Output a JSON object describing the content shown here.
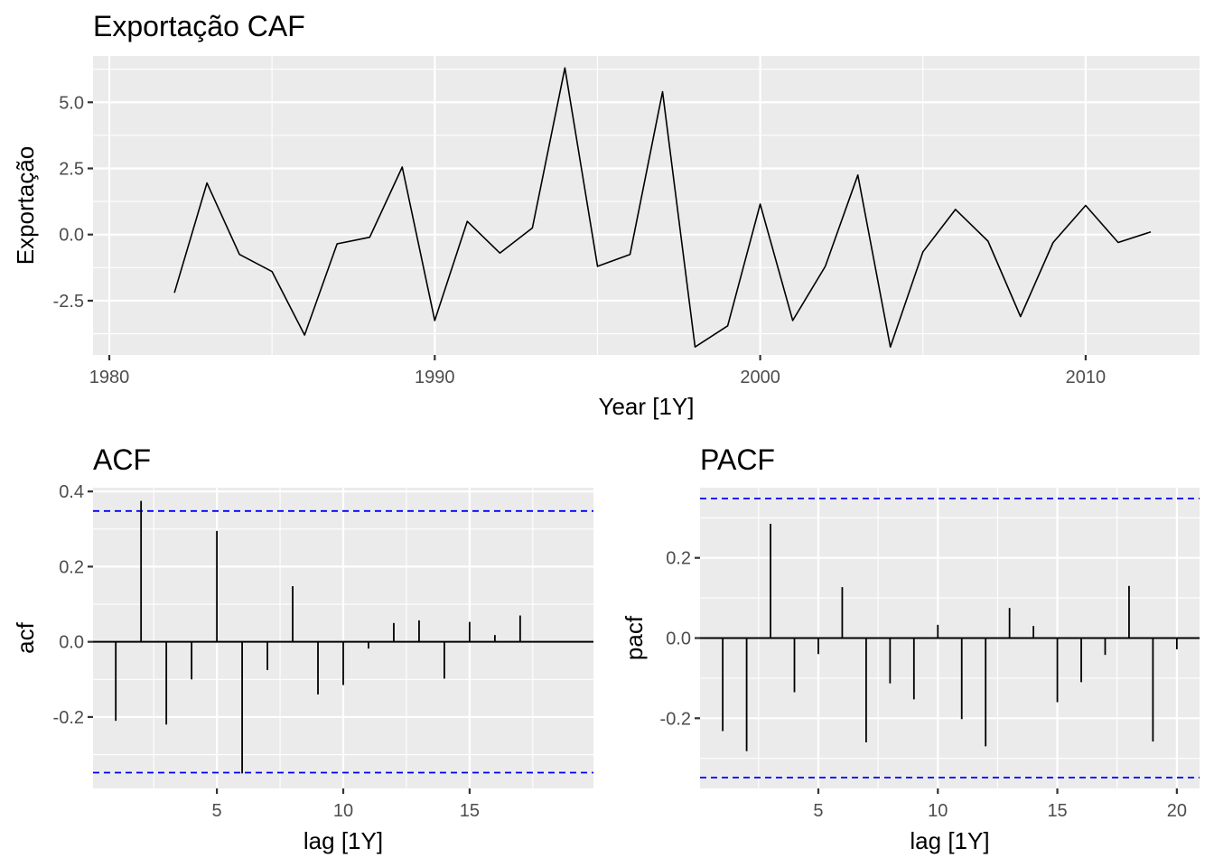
{
  "chart_data": [
    {
      "id": "ts",
      "type": "line",
      "title": "Exportação CAF",
      "xlabel": "Year [1Y]",
      "ylabel": "Exportação",
      "xlim": [
        1979.5,
        2013.5
      ],
      "ylim": [
        -4.55,
        6.75
      ],
      "xticks": [
        1980,
        1990,
        2000,
        2010
      ],
      "xtick_labels": [
        "1980",
        "1990",
        "2000",
        "2010"
      ],
      "yticks": [
        -2.5,
        0.0,
        2.5,
        5.0
      ],
      "ytick_labels": [
        "-2.5",
        "0.0",
        "2.5",
        "5.0"
      ],
      "grid": true,
      "line_color": "#000000",
      "x": [
        1982,
        1983,
        1984,
        1985,
        1986,
        1987,
        1988,
        1989,
        1990,
        1991,
        1992,
        1993,
        1994,
        1995,
        1996,
        1997,
        1998,
        1999,
        2000,
        2001,
        2002,
        2003,
        2004,
        2005,
        2006,
        2007,
        2008,
        2009,
        2010,
        2011,
        2012
      ],
      "values": [
        -2.2,
        1.95,
        -0.75,
        -1.4,
        -3.8,
        -0.35,
        -0.1,
        2.55,
        -3.25,
        0.5,
        -0.7,
        0.25,
        6.3,
        -1.2,
        -0.75,
        5.4,
        -4.25,
        -3.45,
        1.15,
        -3.25,
        -1.2,
        2.25,
        -4.25,
        -0.65,
        0.95,
        -0.25,
        -3.1,
        -0.3,
        1.1,
        -0.3,
        0.1
      ]
    },
    {
      "id": "acf",
      "type": "bar",
      "title": "ACF",
      "xlabel": "lag [1Y]",
      "ylabel": "acf",
      "xlim": [
        0.1,
        19.9
      ],
      "ylim": [
        -0.39,
        0.41
      ],
      "xticks": [
        5,
        10,
        15
      ],
      "xtick_labels": [
        "5",
        "10",
        "15"
      ],
      "yticks": [
        -0.2,
        0.0,
        0.2,
        0.4
      ],
      "ytick_labels": [
        "-0.2",
        "0.0",
        "0.2",
        "0.4"
      ],
      "grid": true,
      "ci": 0.348,
      "ci_color": "#0000ff",
      "x": [
        1,
        2,
        3,
        4,
        5,
        6,
        7,
        8,
        9,
        10,
        11,
        12,
        13,
        14,
        15,
        16,
        17
      ],
      "values": [
        -0.21,
        0.375,
        -0.22,
        -0.1,
        0.295,
        -0.35,
        -0.075,
        0.148,
        -0.14,
        -0.115,
        -0.018,
        0.05,
        0.057,
        -0.098,
        0.053,
        0.018,
        0.07
      ]
    },
    {
      "id": "pacf",
      "type": "bar",
      "title": "PACF",
      "xlabel": "lag [1Y]",
      "ylabel": "pacf",
      "xlim": [
        0.05,
        20.95
      ],
      "ylim": [
        -0.375,
        0.375
      ],
      "xticks": [
        5,
        10,
        15,
        20
      ],
      "xtick_labels": [
        "5",
        "10",
        "15",
        "20"
      ],
      "yticks": [
        -0.2,
        0.0,
        0.2
      ],
      "ytick_labels": [
        "-0.2",
        "0.0",
        "0.2"
      ],
      "grid": true,
      "ci": 0.348,
      "ci_color": "#0000ff",
      "x": [
        1,
        2,
        3,
        4,
        5,
        6,
        7,
        8,
        9,
        10,
        11,
        12,
        13,
        14,
        15,
        16,
        17,
        18,
        19,
        20
      ],
      "values": [
        -0.232,
        -0.282,
        0.285,
        -0.135,
        -0.04,
        0.127,
        -0.26,
        -0.113,
        -0.153,
        0.033,
        -0.202,
        -0.27,
        0.075,
        0.03,
        -0.16,
        -0.11,
        -0.042,
        0.13,
        -0.258,
        -0.028
      ]
    }
  ]
}
